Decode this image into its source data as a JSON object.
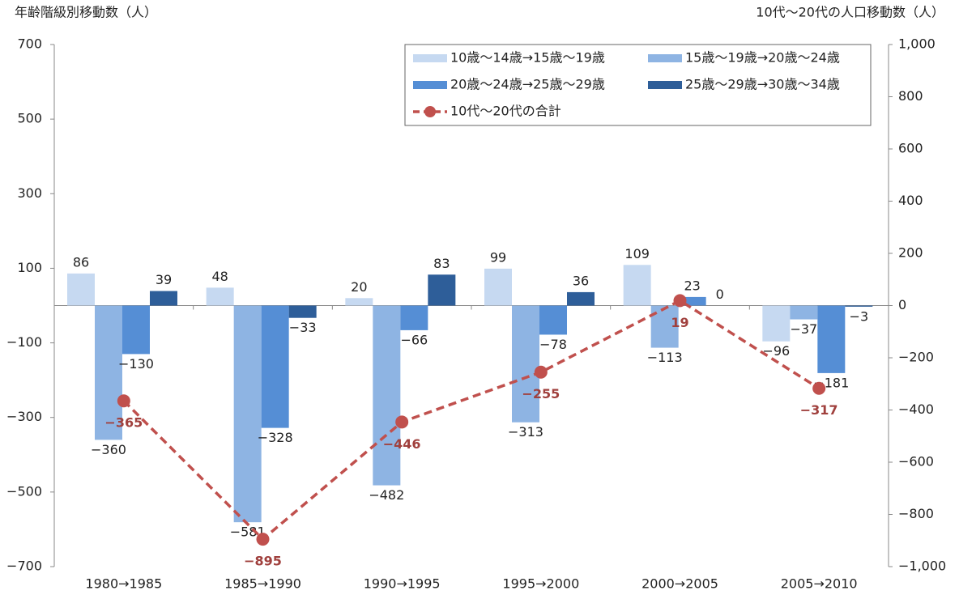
{
  "chart_data": {
    "type": "bar",
    "y_label": "年齢階級別移動数（人）",
    "y2_label": "10代～20代の人口移動数（人）",
    "categories": [
      "1980→1985",
      "1985→1990",
      "1990→1995",
      "1995→2000",
      "2000→2005",
      "2005→2010"
    ],
    "series": [
      {
        "name": "10歳～14歳→15歳～19歳",
        "color": "#c6d9f1",
        "values": [
          86,
          48,
          20,
          99,
          109,
          -96
        ],
        "value_labels": [
          "86",
          "48",
          "20",
          "99",
          "109",
          "−96"
        ]
      },
      {
        "name": "15歳～19歳→20歳～24歳",
        "color": "#8eb4e3",
        "values": [
          -360,
          -581,
          -482,
          -313,
          -113,
          -37
        ],
        "value_labels": [
          "−360",
          "−581",
          "−482",
          "−313",
          "−113",
          "−37"
        ]
      },
      {
        "name": "20歳～24歳→25歳～29歳",
        "color": "#558ed5",
        "values": [
          -130,
          -328,
          -66,
          -78,
          23,
          -181
        ],
        "value_labels": [
          "−130",
          "−328",
          "−66",
          "−78",
          "23",
          "−181"
        ]
      },
      {
        "name": "25歳～29歳→30歳～34歳",
        "color": "#2e5e99",
        "values": [
          39,
          -33,
          83,
          36,
          0,
          -3
        ],
        "value_labels": [
          "39",
          "−33",
          "83",
          "36",
          "0",
          "−3"
        ]
      },
      {
        "name": "10代～20代の合計",
        "type": "line",
        "axis": "y2",
        "color": "#c0504d",
        "values": [
          -365,
          -895,
          -446,
          -255,
          19,
          -317
        ],
        "value_labels": [
          "−365",
          "−895",
          "−446",
          "−255",
          "19",
          "−317"
        ]
      }
    ],
    "ylim": [
      -700,
      700
    ],
    "yticks": [
      {
        "value": -700,
        "label": "−700"
      },
      {
        "value": -500,
        "label": "−500"
      },
      {
        "value": -300,
        "label": "−300"
      },
      {
        "value": -100,
        "label": "−100"
      },
      100,
      300,
      500,
      700
    ],
    "y2lim": [
      -1000,
      1000
    ],
    "y2ticks": [
      {
        "value": -1000,
        "label": "−1,000"
      },
      {
        "value": -800,
        "label": "−800"
      },
      {
        "value": -600,
        "label": "−600"
      },
      {
        "value": -400,
        "label": "−400"
      },
      {
        "value": -200,
        "label": "−200"
      },
      0,
      200,
      400,
      600,
      800,
      {
        "value": 1000,
        "label": "1,000"
      }
    ],
    "legend": "top-right",
    "grid": false
  }
}
